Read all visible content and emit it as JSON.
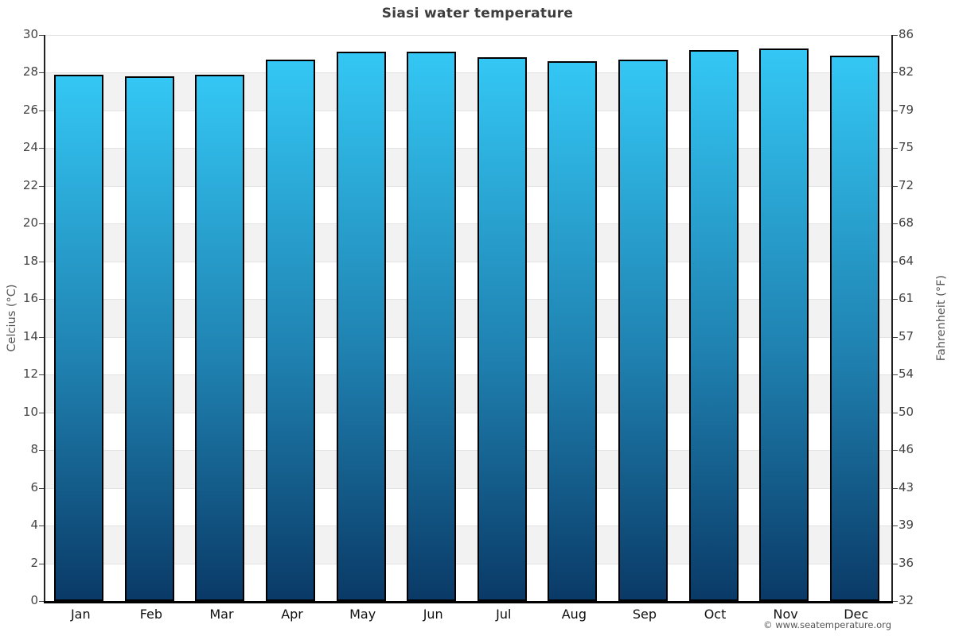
{
  "title": "Siasi water temperature",
  "footer": {
    "copyright": "© www.seatemperature.org"
  },
  "chart_data": {
    "type": "bar",
    "title": "Siasi water temperature",
    "categories": [
      "Jan",
      "Feb",
      "Mar",
      "Apr",
      "May",
      "Jun",
      "Jul",
      "Aug",
      "Sep",
      "Oct",
      "Nov",
      "Dec"
    ],
    "values": [
      27.9,
      27.8,
      27.9,
      28.7,
      29.1,
      29.1,
      28.8,
      28.6,
      28.7,
      29.2,
      29.3,
      28.9
    ],
    "unit": "°C",
    "ylabel_left": "Celcius (°C)",
    "ylabel_right": "Fahrenheit (°F)",
    "ylim": [
      0,
      30
    ],
    "y_left_ticks": [
      0,
      2,
      4,
      6,
      8,
      10,
      12,
      14,
      16,
      18,
      20,
      22,
      24,
      26,
      28,
      30
    ],
    "y_right_ticks": [
      32,
      36,
      39,
      43,
      46,
      50,
      54,
      57,
      61,
      64,
      68,
      72,
      75,
      79,
      82,
      86
    ],
    "xlabel": "",
    "legend": "none",
    "grid": "horizontal bands every 2°C, alternating white and light gray",
    "colors": {
      "bar_gradient_top": "#34c7f4",
      "bar_gradient_mid": "#1f81b0",
      "bar_gradient_bottom": "#0a3a67",
      "bar_border": "#000000",
      "band_alt": "#f2f2f2",
      "gridline": "#e3e3e3",
      "axis_line": "#222222",
      "baseline": "#000000",
      "tick_label": "#444444",
      "month_label": "#111111",
      "title": "#3d3d3d",
      "footer": "#555555"
    }
  }
}
